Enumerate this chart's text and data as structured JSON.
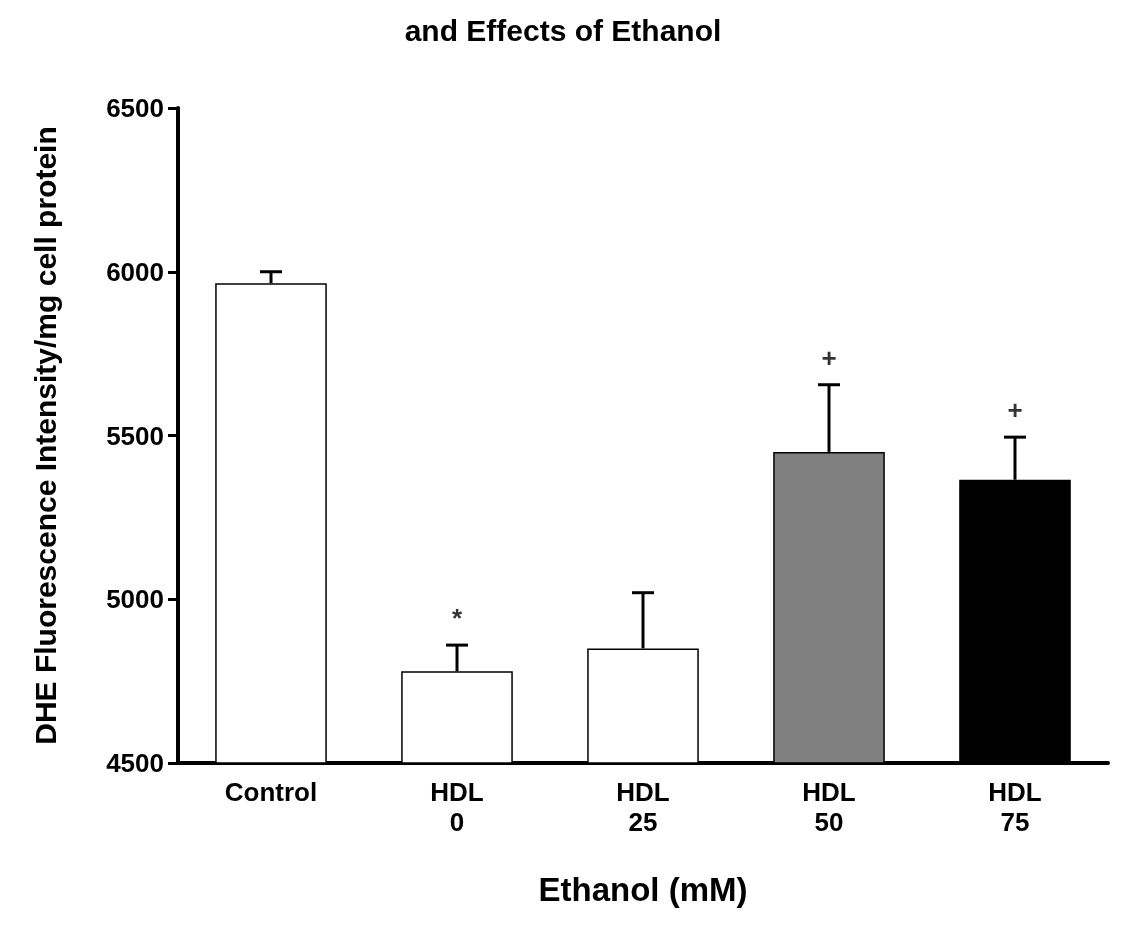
{
  "chart_data": {
    "type": "bar",
    "title": "and Effects of Ethanol",
    "xlabel": "Ethanol (mM)",
    "ylabel": "DHE Fluorescence Intensity/mg cell protein",
    "categories": [
      "Control",
      "HDL\n0",
      "HDL\n25",
      "HDL\n50",
      "HDL\n75"
    ],
    "values": [
      5965,
      4780,
      4850,
      5450,
      5365
    ],
    "colors": [
      "#ffffff",
      "#ffffff",
      "#ffffff",
      "#808080",
      "#000000"
    ],
    "errors": [
      [
        5965,
        6000
      ],
      [
        4780,
        4860
      ],
      [
        4850,
        5020
      ],
      [
        5450,
        5655
      ],
      [
        5365,
        5495
      ]
    ],
    "annotations": [
      {
        "text": "*",
        "x": "HDL\n0",
        "y": 4860
      },
      {
        "text": "+",
        "x": "HDL\n50",
        "y": 5655
      },
      {
        "text": "+",
        "x": "HDL\n75",
        "y": 5495
      }
    ],
    "ylim": [
      4500,
      6500
    ],
    "yticks": [
      4500,
      5000,
      5500,
      6000,
      6500
    ],
    "grid": false
  }
}
